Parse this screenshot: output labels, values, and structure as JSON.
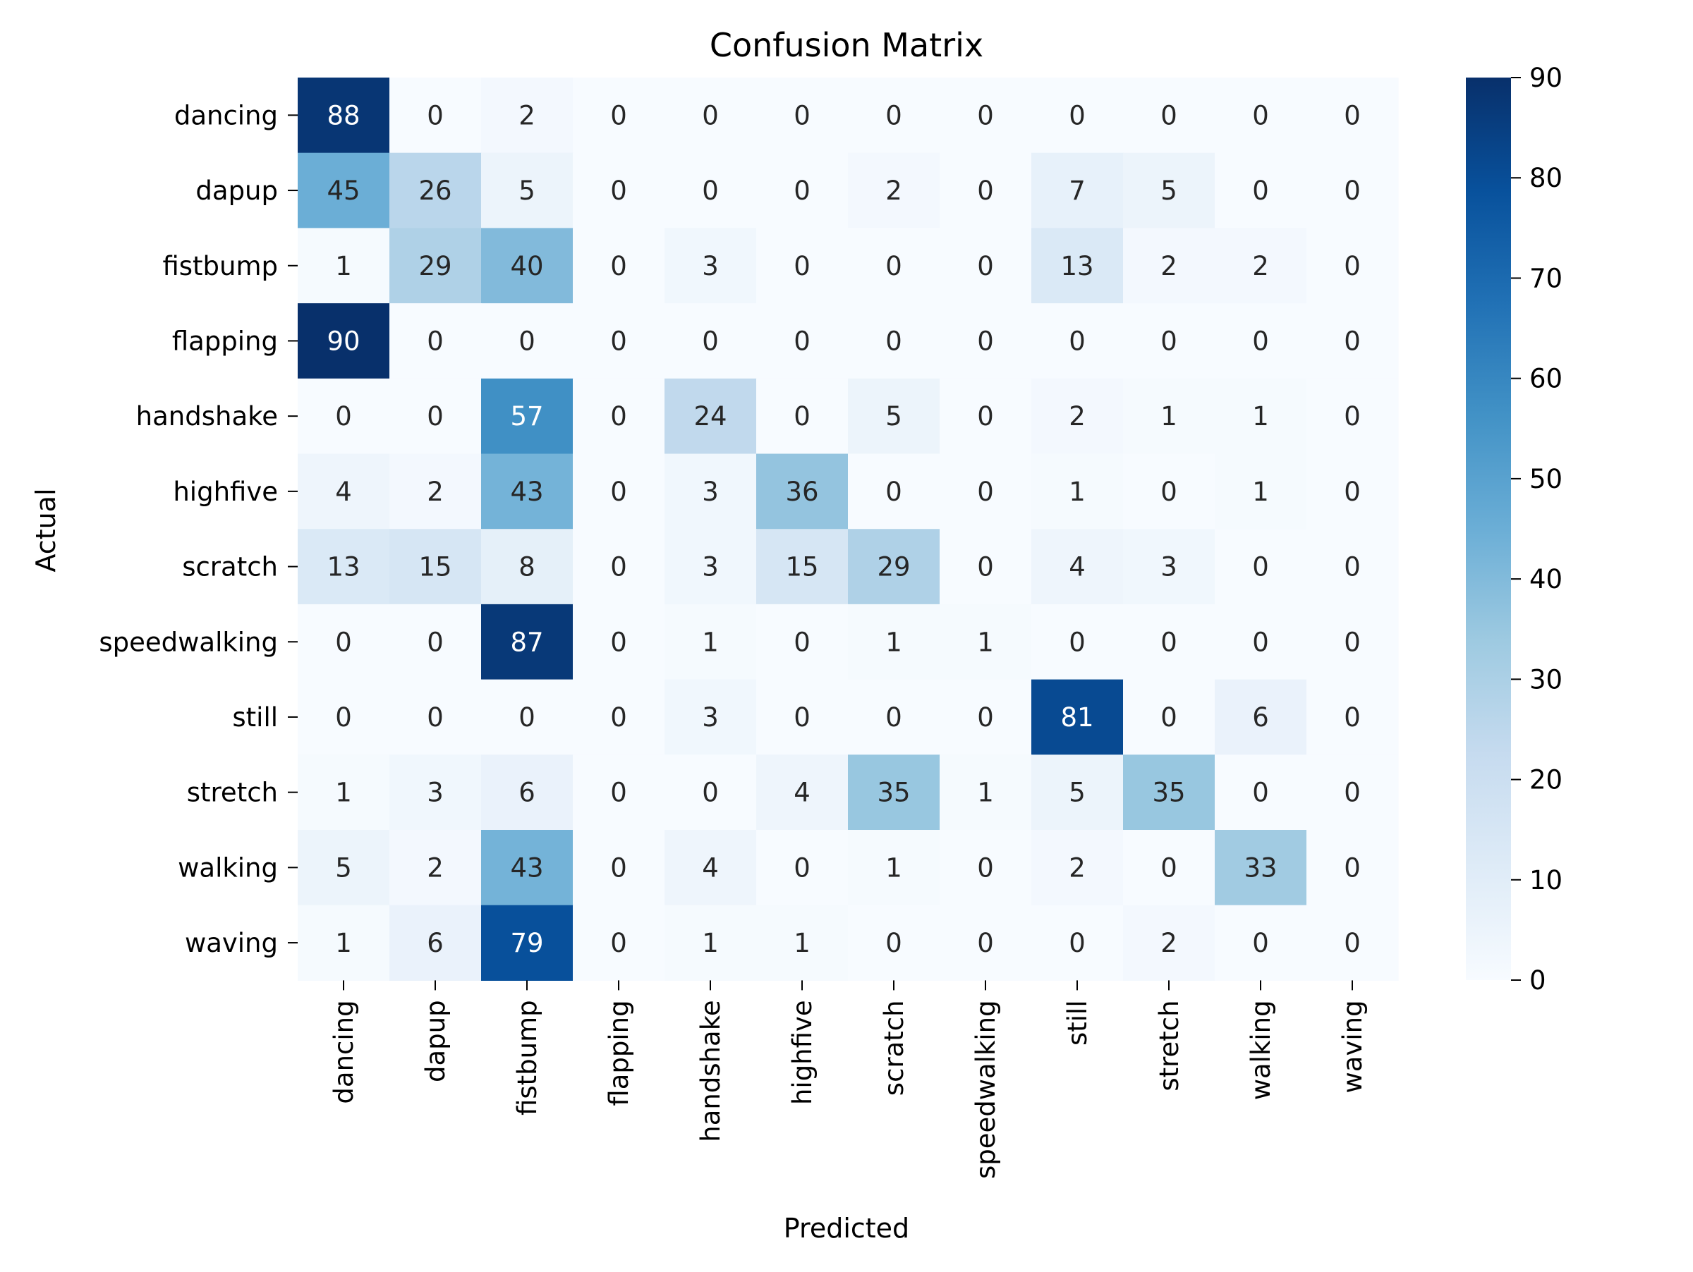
{
  "chart_data": {
    "type": "heatmap",
    "title": "Confusion Matrix",
    "xlabel": "Predicted",
    "ylabel": "Actual",
    "x_categories": [
      "dancing",
      "dapup",
      "fistbump",
      "flapping",
      "handshake",
      "highfive",
      "scratch",
      "speedwalking",
      "still",
      "stretch",
      "walking",
      "waving"
    ],
    "y_categories": [
      "dancing",
      "dapup",
      "fistbump",
      "flapping",
      "handshake",
      "highfive",
      "scratch",
      "speedwalking",
      "still",
      "stretch",
      "walking",
      "waving"
    ],
    "values": [
      [
        88,
        0,
        2,
        0,
        0,
        0,
        0,
        0,
        0,
        0,
        0,
        0
      ],
      [
        45,
        26,
        5,
        0,
        0,
        0,
        2,
        0,
        7,
        5,
        0,
        0
      ],
      [
        1,
        29,
        40,
        0,
        3,
        0,
        0,
        0,
        13,
        2,
        2,
        0
      ],
      [
        90,
        0,
        0,
        0,
        0,
        0,
        0,
        0,
        0,
        0,
        0,
        0
      ],
      [
        0,
        0,
        57,
        0,
        24,
        0,
        5,
        0,
        2,
        1,
        1,
        0
      ],
      [
        4,
        2,
        43,
        0,
        3,
        36,
        0,
        0,
        1,
        0,
        1,
        0
      ],
      [
        13,
        15,
        8,
        0,
        3,
        15,
        29,
        0,
        4,
        3,
        0,
        0
      ],
      [
        0,
        0,
        87,
        0,
        1,
        0,
        1,
        1,
        0,
        0,
        0,
        0
      ],
      [
        0,
        0,
        0,
        0,
        3,
        0,
        0,
        0,
        81,
        0,
        6,
        0
      ],
      [
        1,
        3,
        6,
        0,
        0,
        4,
        35,
        1,
        5,
        35,
        0,
        0
      ],
      [
        5,
        2,
        43,
        0,
        4,
        0,
        1,
        0,
        2,
        0,
        33,
        0
      ],
      [
        1,
        6,
        79,
        0,
        1,
        1,
        0,
        0,
        0,
        2,
        0,
        0
      ]
    ],
    "colorbar": {
      "range": [
        0,
        90
      ],
      "ticks": [
        "0",
        "10",
        "20",
        "30",
        "40",
        "50",
        "60",
        "70",
        "80",
        "90"
      ]
    },
    "colormap": "Blues",
    "grid": false
  }
}
